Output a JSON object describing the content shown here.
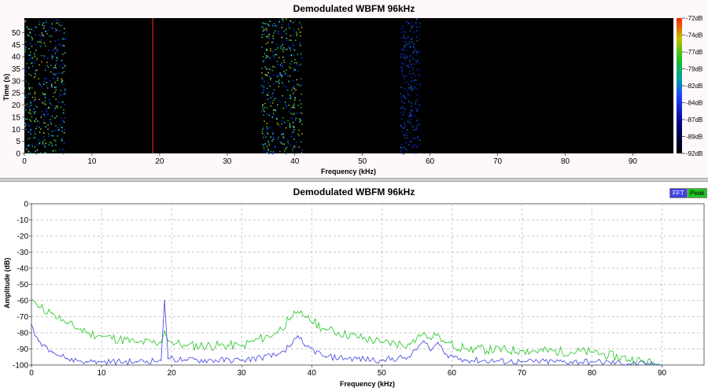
{
  "waterfall": {
    "title": "Demodulated WBFM 96kHz",
    "xlabel": "Frequency (kHz)",
    "ylabel": "Time (s)",
    "xticks": [
      "0",
      "10",
      "20",
      "30",
      "40",
      "50",
      "60",
      "70",
      "80",
      "90"
    ],
    "yticks": [
      "0",
      "5",
      "10",
      "15",
      "20",
      "25",
      "30",
      "35",
      "40",
      "45",
      "50"
    ],
    "colorbar_ticks": [
      "-72dB",
      "-74dB",
      "-77dB",
      "-79dB",
      "-82dB",
      "-84dB",
      "-87dB",
      "-89dB",
      "-92dB"
    ]
  },
  "spectrum": {
    "title": "Demodulated WBFM 96kHz",
    "xlabel": "Frequency (kHz)",
    "ylabel": "Amplitude (dB)",
    "legend": [
      {
        "label": "FFT",
        "color": "#4040e0"
      },
      {
        "label": "Peak",
        "color": "#22c422"
      }
    ]
  },
  "chart_data": [
    {
      "type": "heatmap",
      "title": "Demodulated WBFM 96kHz",
      "xlabel": "Frequency (kHz)",
      "ylabel": "Time (s)",
      "xlim": [
        0,
        96
      ],
      "ylim": [
        0,
        56
      ],
      "color_scale_db": [
        -92,
        -72
      ],
      "features_khz": [
        {
          "start": 0,
          "end": 6,
          "level": "high"
        },
        {
          "start": 19,
          "end": 19,
          "level": "pilot"
        },
        {
          "start": 35,
          "end": 41,
          "level": "high"
        },
        {
          "start": 55.5,
          "end": 58.5,
          "level": "medium"
        }
      ]
    },
    {
      "type": "line",
      "title": "Demodulated WBFM 96kHz",
      "xlabel": "Frequency (kHz)",
      "ylabel": "Amplitude (dB)",
      "xlim": [
        0,
        96
      ],
      "ylim": [
        -100,
        0
      ],
      "grid": true,
      "legend_position": "top-right",
      "series": [
        {
          "name": "FFT",
          "color": "#4040e0",
          "x": [
            0,
            1,
            2,
            3,
            5,
            8,
            10,
            15,
            18.5,
            19,
            19.5,
            22,
            30,
            35,
            37,
            38,
            39,
            42,
            50,
            54,
            56,
            57,
            58,
            59,
            62,
            70,
            80,
            90
          ],
          "y": [
            -75,
            -85,
            -88,
            -92,
            -96,
            -98,
            -98,
            -98,
            -97,
            -60,
            -96,
            -97,
            -97,
            -94,
            -88,
            -82,
            -88,
            -95,
            -97,
            -95,
            -85,
            -91,
            -86,
            -93,
            -97,
            -98,
            -98,
            -100
          ]
        },
        {
          "name": "Peak",
          "color": "#22c422",
          "x": [
            0,
            1,
            3,
            5,
            8,
            10,
            15,
            18.5,
            19,
            19.5,
            22,
            30,
            35,
            37,
            38,
            39,
            42,
            50,
            54,
            56,
            57,
            58,
            59,
            62,
            70,
            80,
            90
          ],
          "y": [
            -59,
            -64,
            -68,
            -74,
            -80,
            -82,
            -86,
            -86,
            -79,
            -85,
            -88,
            -88,
            -80,
            -71,
            -67,
            -70,
            -78,
            -86,
            -87,
            -80,
            -84,
            -81,
            -86,
            -90,
            -91,
            -92,
            -100
          ]
        }
      ]
    }
  ]
}
